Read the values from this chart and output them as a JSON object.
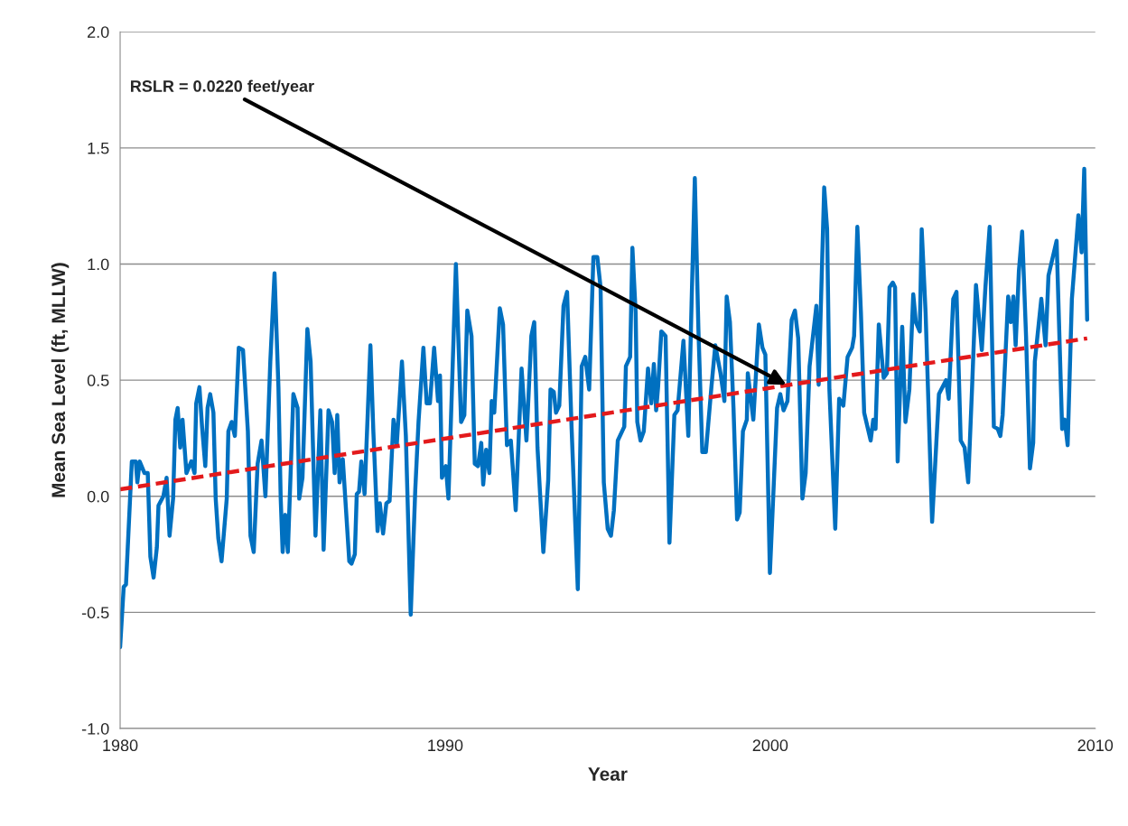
{
  "chart_data": {
    "type": "line",
    "xlabel": "Year",
    "ylabel": "Mean Sea Level (ft, MLLW)",
    "xlim": [
      1980,
      2010
    ],
    "xticks": [
      1980,
      1990,
      2000,
      2010
    ],
    "ylim": [
      -1.0,
      2.0
    ],
    "yticks": [
      {
        "value": -1.0,
        "label": "-1.0"
      },
      {
        "value": -0.5,
        "label": "-0.5"
      },
      {
        "value": 0.0,
        "label": "0.0"
      },
      {
        "value": 0.5,
        "label": "0.5"
      },
      {
        "value": 1.0,
        "label": "1.0"
      },
      {
        "value": 1.5,
        "label": "1.5"
      },
      {
        "value": 2.0,
        "label": "2.0"
      }
    ],
    "grid": "y",
    "marker": "none",
    "annotations": [
      {
        "text": "RSLR = 0.0220 feet/year",
        "x": 2000.5,
        "y": 0.48
      }
    ],
    "series": [
      {
        "color": "#0070c0",
        "line_style": "solid",
        "x": [
          1980.0,
          1980.11,
          1980.18,
          1980.36,
          1980.48,
          1980.53,
          1980.6,
          1980.75,
          1980.85,
          1980.93,
          1981.03,
          1981.13,
          1981.18,
          1981.33,
          1981.43,
          1981.52,
          1981.63,
          1981.7,
          1981.77,
          1981.85,
          1981.92,
          1982.04,
          1982.19,
          1982.29,
          1982.34,
          1982.44,
          1982.52,
          1982.62,
          1982.69,
          1982.77,
          1982.87,
          1982.94,
          1983.02,
          1983.12,
          1983.28,
          1983.33,
          1983.43,
          1983.53,
          1983.65,
          1983.78,
          1983.93,
          1984.01,
          1984.11,
          1984.23,
          1984.35,
          1984.47,
          1984.62,
          1984.75,
          1984.87,
          1984.94,
          1985.0,
          1985.08,
          1985.16,
          1985.33,
          1985.46,
          1985.51,
          1985.61,
          1985.76,
          1985.86,
          1986.01,
          1986.16,
          1986.26,
          1986.41,
          1986.52,
          1986.6,
          1986.68,
          1986.75,
          1986.85,
          1987.05,
          1987.12,
          1987.22,
          1987.28,
          1987.35,
          1987.42,
          1987.52,
          1987.7,
          1987.79,
          1987.92,
          1987.99,
          1988.09,
          1988.19,
          1988.29,
          1988.41,
          1988.51,
          1988.67,
          1988.79,
          1988.94,
          1989.08,
          1989.18,
          1989.33,
          1989.43,
          1989.53,
          1989.66,
          1989.78,
          1989.84,
          1989.9,
          1990.02,
          1990.1,
          1990.33,
          1990.49,
          1990.59,
          1990.68,
          1990.81,
          1990.91,
          1991.01,
          1991.11,
          1991.17,
          1991.26,
          1991.36,
          1991.43,
          1991.51,
          1991.68,
          1991.78,
          1991.9,
          1992.02,
          1992.17,
          1992.35,
          1992.5,
          1992.65,
          1992.74,
          1992.84,
          1993.02,
          1993.17,
          1993.24,
          1993.34,
          1993.41,
          1993.51,
          1993.64,
          1993.75,
          1993.89,
          1994.08,
          1994.2,
          1994.31,
          1994.43,
          1994.56,
          1994.68,
          1994.78,
          1994.88,
          1995.0,
          1995.1,
          1995.19,
          1995.31,
          1995.51,
          1995.56,
          1995.69,
          1995.76,
          1995.86,
          1995.91,
          1996.01,
          1996.11,
          1996.24,
          1996.34,
          1996.42,
          1996.49,
          1996.55,
          1996.65,
          1996.78,
          1996.9,
          1997.05,
          1997.15,
          1997.33,
          1997.48,
          1997.58,
          1997.68,
          1997.79,
          1997.91,
          1998.02,
          1998.19,
          1998.31,
          1998.47,
          1998.59,
          1998.66,
          1998.76,
          1998.87,
          1998.98,
          1999.06,
          1999.16,
          1999.28,
          1999.31,
          1999.48,
          1999.65,
          1999.76,
          1999.85,
          1999.99,
          2000.21,
          2000.31,
          2000.41,
          2000.53,
          2000.66,
          2000.76,
          2000.86,
          2000.99,
          2001.09,
          2001.21,
          2001.42,
          2001.49,
          2001.66,
          2001.75,
          2001.82,
          2002.0,
          2002.12,
          2002.25,
          2002.38,
          2002.52,
          2002.58,
          2002.68,
          2002.79,
          2002.89,
          2003.09,
          2003.17,
          2003.24,
          2003.34,
          2003.49,
          2003.59,
          2003.67,
          2003.77,
          2003.84,
          2003.92,
          2004.06,
          2004.16,
          2004.28,
          2004.4,
          2004.48,
          2004.6,
          2004.66,
          2004.78,
          2004.98,
          2005.19,
          2005.41,
          2005.49,
          2005.63,
          2005.73,
          2005.86,
          2005.98,
          2006.09,
          2006.21,
          2006.33,
          2006.51,
          2006.62,
          2006.75,
          2006.88,
          2007.0,
          2007.08,
          2007.15,
          2007.32,
          2007.4,
          2007.48,
          2007.55,
          2007.65,
          2007.75,
          2007.87,
          2007.99,
          2008.09,
          2008.14,
          2008.34,
          2008.47,
          2008.56,
          2008.81,
          2008.98,
          2009.06,
          2009.15,
          2009.28,
          2009.48,
          2009.58,
          2009.66,
          2009.75
        ],
        "values": [
          -0.65,
          -0.39,
          -0.38,
          0.15,
          0.15,
          0.06,
          0.15,
          0.1,
          0.1,
          -0.26,
          -0.35,
          -0.22,
          -0.04,
          0.0,
          0.08,
          -0.17,
          -0.01,
          0.33,
          0.38,
          0.21,
          0.33,
          0.1,
          0.15,
          0.1,
          0.4,
          0.47,
          0.3,
          0.13,
          0.38,
          0.44,
          0.36,
          -0.01,
          -0.18,
          -0.28,
          -0.01,
          0.28,
          0.32,
          0.26,
          0.64,
          0.63,
          0.28,
          -0.17,
          -0.24,
          0.14,
          0.24,
          0.0,
          0.58,
          0.96,
          0.47,
          -0.01,
          -0.24,
          -0.08,
          -0.24,
          0.44,
          0.38,
          -0.01,
          0.08,
          0.72,
          0.58,
          -0.17,
          0.37,
          -0.23,
          0.37,
          0.32,
          0.1,
          0.35,
          0.06,
          0.16,
          -0.28,
          -0.29,
          -0.25,
          0.01,
          0.02,
          0.15,
          0.01,
          0.65,
          0.28,
          -0.15,
          -0.03,
          -0.16,
          -0.03,
          -0.02,
          0.33,
          0.22,
          0.58,
          0.26,
          -0.51,
          0.03,
          0.32,
          0.64,
          0.4,
          0.4,
          0.64,
          0.41,
          0.52,
          0.08,
          0.13,
          -0.01,
          1.0,
          0.32,
          0.35,
          0.8,
          0.69,
          0.14,
          0.13,
          0.23,
          0.05,
          0.2,
          0.1,
          0.41,
          0.36,
          0.81,
          0.74,
          0.22,
          0.24,
          -0.06,
          0.55,
          0.24,
          0.69,
          0.75,
          0.21,
          -0.24,
          0.07,
          0.46,
          0.45,
          0.36,
          0.39,
          0.82,
          0.88,
          0.29,
          -0.4,
          0.56,
          0.6,
          0.46,
          1.03,
          1.03,
          0.9,
          0.06,
          -0.14,
          -0.17,
          -0.06,
          0.24,
          0.3,
          0.56,
          0.6,
          1.07,
          0.79,
          0.32,
          0.24,
          0.28,
          0.55,
          0.4,
          0.57,
          0.37,
          0.47,
          0.71,
          0.69,
          -0.2,
          0.35,
          0.37,
          0.67,
          0.26,
          0.83,
          1.37,
          0.72,
          0.19,
          0.19,
          0.47,
          0.65,
          0.53,
          0.41,
          0.86,
          0.75,
          0.38,
          -0.1,
          -0.07,
          0.28,
          0.33,
          0.53,
          0.33,
          0.74,
          0.64,
          0.61,
          -0.33,
          0.38,
          0.44,
          0.37,
          0.41,
          0.76,
          0.8,
          0.68,
          -0.01,
          0.1,
          0.56,
          0.82,
          0.48,
          1.33,
          1.15,
          0.46,
          -0.14,
          0.42,
          0.39,
          0.6,
          0.64,
          0.69,
          1.16,
          0.79,
          0.36,
          0.24,
          0.33,
          0.29,
          0.74,
          0.51,
          0.53,
          0.9,
          0.92,
          0.9,
          0.15,
          0.73,
          0.32,
          0.46,
          0.87,
          0.75,
          0.71,
          1.15,
          0.79,
          -0.11,
          0.44,
          0.5,
          0.42,
          0.85,
          0.88,
          0.24,
          0.21,
          0.06,
          0.47,
          0.91,
          0.63,
          0.9,
          1.16,
          0.3,
          0.29,
          0.26,
          0.35,
          0.86,
          0.75,
          0.86,
          0.65,
          0.97,
          1.14,
          0.69,
          0.12,
          0.23,
          0.58,
          0.85,
          0.65,
          0.95,
          1.1,
          0.29,
          0.33,
          0.22,
          0.85,
          1.21,
          1.05,
          1.41,
          0.76
        ]
      },
      {
        "type": "line",
        "color": "#e31a1c",
        "line_style": "dashed",
        "x": [
          1980.0,
          2009.75
        ],
        "values": [
          0.03,
          0.68
        ]
      }
    ]
  }
}
